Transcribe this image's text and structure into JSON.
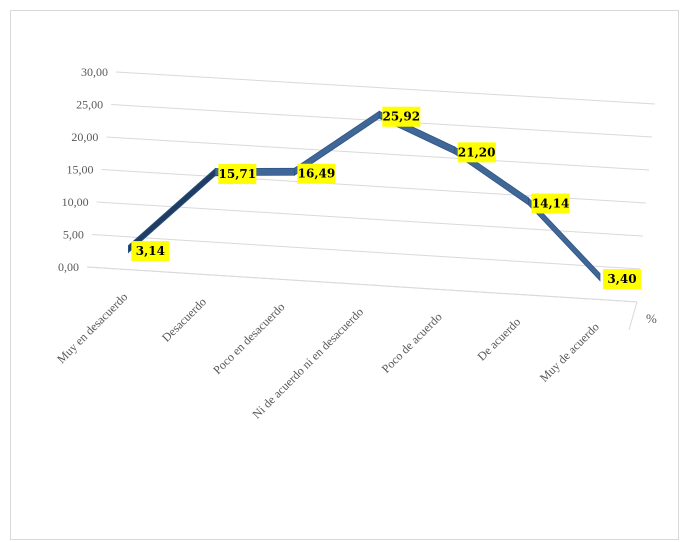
{
  "chart_data": {
    "type": "line",
    "style": "3d-line",
    "categories": [
      "Muy en desacuerdo",
      "Desacuerdo",
      "Poco en desacuerdo",
      "Ni de acuerdo ni en desacuerdo",
      "Poco de acuerdo",
      "De acuerdo",
      "Muy de acuerdo"
    ],
    "values": [
      3.14,
      15.71,
      16.49,
      25.92,
      21.2,
      14.14,
      3.4
    ],
    "data_labels": [
      "3,14",
      "15,71",
      "16,49",
      "25,92",
      "21,20",
      "14,14",
      "3,40"
    ],
    "yticks": [
      "0,00",
      "5,00",
      "10,00",
      "15,00",
      "20,00",
      "25,00",
      "30,00"
    ],
    "ylim": [
      0,
      30
    ],
    "unit_label": "%",
    "grid": true,
    "series_color": "#3f6797",
    "label_bg": "#ffff00"
  }
}
